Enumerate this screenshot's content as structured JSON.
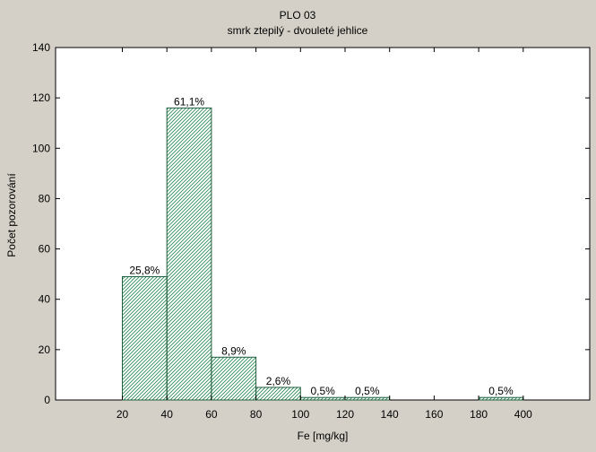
{
  "chart_data": {
    "type": "bar",
    "title": "PLO 03",
    "subtitle": "smrk ztepilý - dvouleté jehlice",
    "xlabel": "Fe [mg/kg]",
    "ylabel": "Počet pozorování",
    "categories": [
      "20-40",
      "40-60",
      "60-80",
      "80-100",
      "100-120",
      "120-140",
      "140-160",
      "160-180",
      "180-400"
    ],
    "values": [
      49,
      116,
      17,
      5,
      1,
      1,
      0,
      0,
      1
    ],
    "data_labels": [
      "25,8%",
      "61,1%",
      "8,9%",
      "2,6%",
      "0,5%",
      "0,5%",
      "",
      "",
      "0,5%"
    ],
    "x_tick_labels": [
      "20",
      "40",
      "60",
      "80",
      "100",
      "120",
      "140",
      "160",
      "180",
      "400"
    ],
    "y_ticks": [
      0,
      20,
      40,
      60,
      80,
      100,
      120,
      140
    ],
    "ylim": [
      0,
      140
    ],
    "grid": false,
    "bar_fill_pattern": "diagonal-hatch",
    "colors": {
      "background": "#d4d0c8",
      "plot_background": "#ffffff",
      "bar_stroke": "#1f5f3d",
      "hatch": "#2e8a58"
    }
  }
}
